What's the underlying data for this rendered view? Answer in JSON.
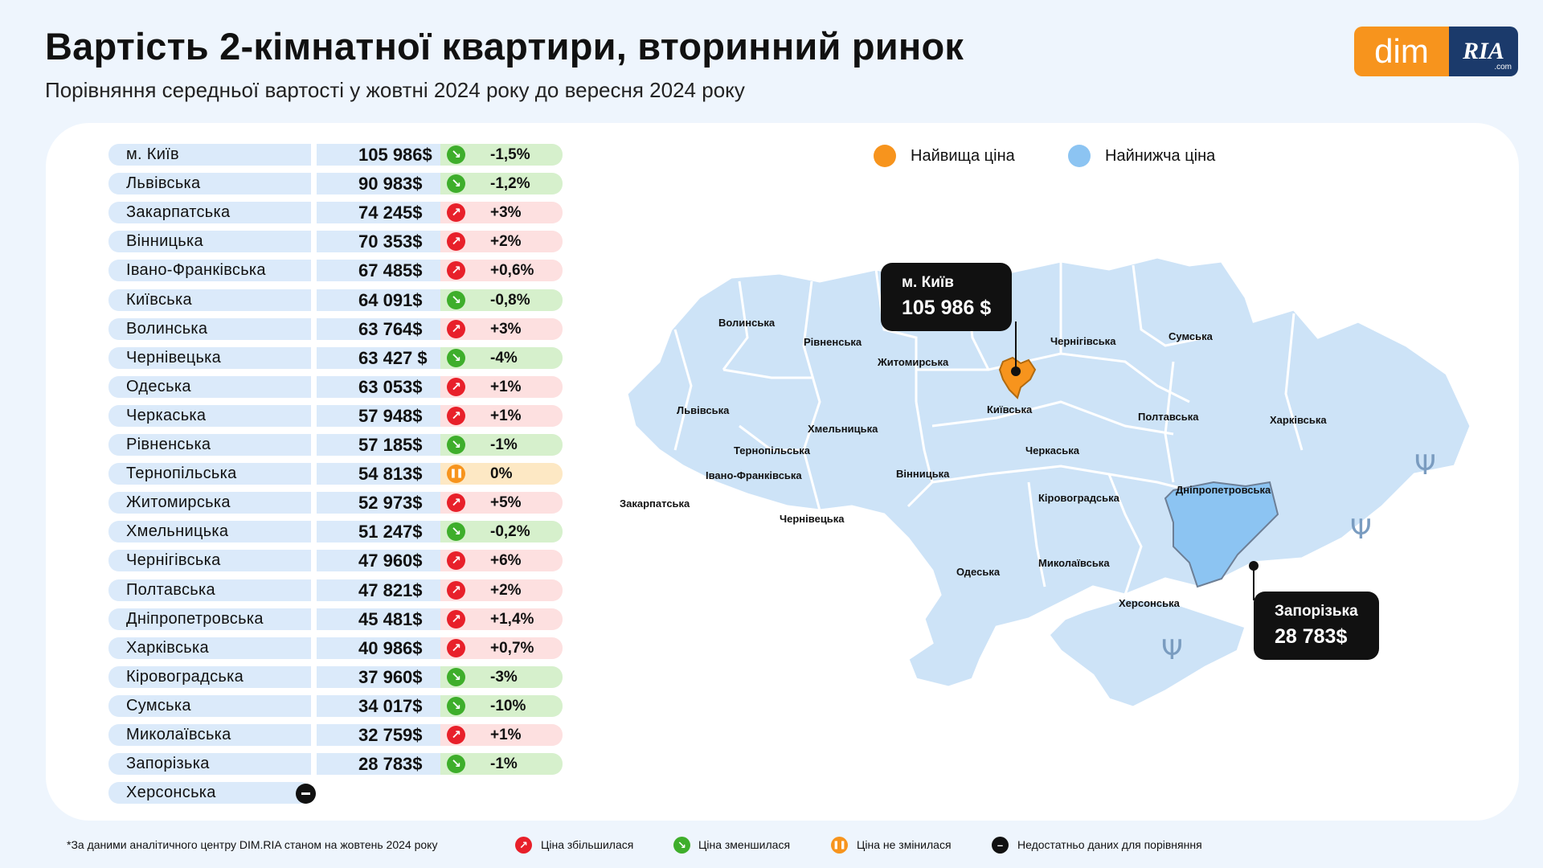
{
  "header": {
    "title": "Вартість 2-кімнатної квартири, вторинний ринок",
    "subtitle": "Порівняння середньої вартості у жовтні 2024 року до вересня 2024 року"
  },
  "logo": {
    "part1": "dim",
    "part2": "RIA",
    "part3": ".com"
  },
  "colors": {
    "increase": "#e8202a",
    "decrease": "#3eae2b",
    "unchanged": "#f7941d",
    "no_data": "#111111",
    "highest": "#f7941d",
    "lowest": "#8cc4f2",
    "map_fill": "#cde3f7"
  },
  "table": {
    "rows": [
      {
        "region": "м. Київ",
        "price": "105 986$",
        "change": "-1,5%",
        "trend": "down"
      },
      {
        "region": "Львівська",
        "price": "90 983$",
        "change": "-1,2%",
        "trend": "down"
      },
      {
        "region": "Закарпатська",
        "price": "74 245$",
        "change": "+3%",
        "trend": "up"
      },
      {
        "region": "Вінницька",
        "price": "70 353$",
        "change": "+2%",
        "trend": "up"
      },
      {
        "region": "Івано-Франківська",
        "price": "67 485$",
        "change": "+0,6%",
        "trend": "up"
      },
      {
        "region": "Київська",
        "price": "64 091$",
        "change": "-0,8%",
        "trend": "down"
      },
      {
        "region": "Волинська",
        "price": "63 764$",
        "change": "+3%",
        "trend": "up"
      },
      {
        "region": "Чернівецька",
        "price": "63 427 $",
        "change": "-4%",
        "trend": "down"
      },
      {
        "region": "Одеська",
        "price": "63 053$",
        "change": "+1%",
        "trend": "up"
      },
      {
        "region": "Черкаська",
        "price": "57 948$",
        "change": "+1%",
        "trend": "up"
      },
      {
        "region": "Рівненська",
        "price": "57 185$",
        "change": "-1%",
        "trend": "down"
      },
      {
        "region": "Тернопільська",
        "price": "54 813$",
        "change": "0%",
        "trend": "zero"
      },
      {
        "region": "Житомирська",
        "price": "52 973$",
        "change": "+5%",
        "trend": "up"
      },
      {
        "region": "Хмельницька",
        "price": "51 247$",
        "change": "-0,2%",
        "trend": "down"
      },
      {
        "region": "Чернігівська",
        "price": "47 960$",
        "change": "+6%",
        "trend": "up"
      },
      {
        "region": "Полтавська",
        "price": "47 821$",
        "change": "+2%",
        "trend": "up"
      },
      {
        "region": "Дніпропетровська",
        "price": "45 481$",
        "change": "+1,4%",
        "trend": "up"
      },
      {
        "region": "Харківська",
        "price": "40 986$",
        "change": "+0,7%",
        "trend": "up"
      },
      {
        "region": "Кіровоградська",
        "price": "37 960$",
        "change": "-3%",
        "trend": "down"
      },
      {
        "region": "Сумська",
        "price": "34 017$",
        "change": "-10%",
        "trend": "down"
      },
      {
        "region": "Миколаївська",
        "price": "32 759$",
        "change": "+1%",
        "trend": "up"
      },
      {
        "region": "Запорізька",
        "price": "28 783$",
        "change": "-1%",
        "trend": "down"
      }
    ],
    "no_data_region": "Херсонська"
  },
  "map_legend": {
    "highest": "Найвища ціна",
    "lowest": "Найнижча ціна"
  },
  "map": {
    "labels": [
      "Волинська",
      "Рівненська",
      "Житомирська",
      "Київська",
      "Чернігівська",
      "Сумська",
      "Львівська",
      "Хмельницька",
      "Тернопільська",
      "Вінницька",
      "Черкаська",
      "Полтавська",
      "Харківська",
      "Івано-Франківська",
      "Закарпатська",
      "Чернівецька",
      "Кіровоградська",
      "Дніпропетровська",
      "Одеська",
      "Миколаївська",
      "Херсонська"
    ],
    "highest_callout": {
      "name": "м. Київ",
      "price": "105 986 $"
    },
    "lowest_callout": {
      "name": "Запорізька",
      "price": "28 783$"
    }
  },
  "footer": {
    "source": "*За даними аналітичного центру DIM.RIA станом на жовтень 2024 року",
    "legend": {
      "increase": "Ціна збільшилася",
      "decrease": "Ціна зменшилася",
      "unchanged": "Ціна не змінилася",
      "no_data": "Недостатньо даних для порівняння"
    }
  }
}
